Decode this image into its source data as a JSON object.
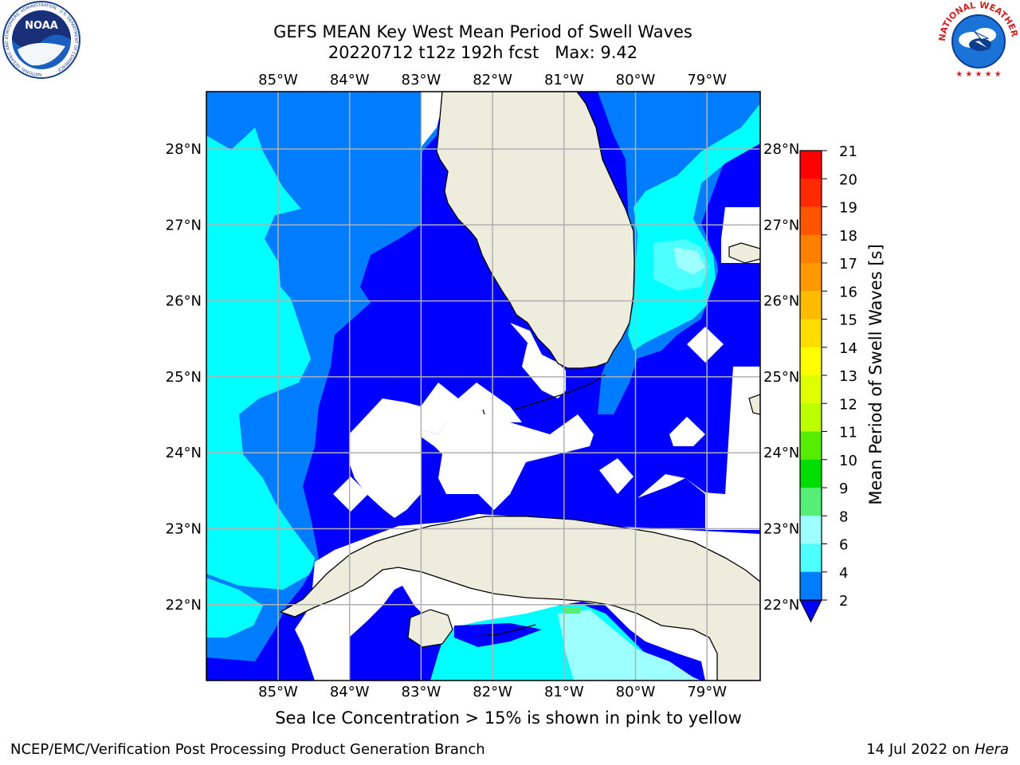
{
  "header": {
    "title_line1": "GEFS MEAN Key West Mean Period of Swell Waves",
    "title_line2": "20220712 t12z 192h fcst   Max: 9.42"
  },
  "logos": {
    "left": {
      "text": "NOAA",
      "ring_text": "NATIONAL OCEANIC AND ATMOSPHERIC ADMINISTRATION · U.S. DEPARTMENT OF COMMERCE ·"
    },
    "right": {
      "ring_text": "NATIONAL WEATHER SERVICE"
    }
  },
  "map": {
    "lon_labels": [
      "85°W",
      "84°W",
      "83°W",
      "82°W",
      "81°W",
      "80°W",
      "79°W"
    ],
    "lat_labels": [
      "28°N",
      "27°N",
      "26°N",
      "25°N",
      "24°N",
      "23°N",
      "22°N"
    ],
    "land_color": "#eeecdc",
    "ocean_colors": {
      "2-4": "#0000ff",
      "4-6": "#007dff",
      "6-8": "#00ffff",
      "8-10": "#4dffff",
      "10-12": "#9dffff"
    },
    "grid": true
  },
  "colorbar": {
    "label": "Mean Period of Swell Waves [s]",
    "ticks": [
      "21",
      "20",
      "19",
      "18",
      "17",
      "16",
      "15",
      "14",
      "13",
      "12",
      "11",
      "10",
      "9",
      "8",
      "6",
      "4",
      "2"
    ],
    "colors_top_to_bottom": [
      "#ff0000",
      "#ff2a00",
      "#ff5500",
      "#ff7f00",
      "#ff9900",
      "#ffbb00",
      "#ffdd00",
      "#ffff00",
      "#ddff00",
      "#bbff00",
      "#55ee00",
      "#00dd00",
      "#00ee44",
      "#55ee77",
      "#9effff",
      "#4dffff",
      "#00ffff",
      "#007dff",
      "#0000ff"
    ]
  },
  "chart_data": {
    "type": "heatmap",
    "variable": "Mean Period of Swell Waves",
    "units": "s",
    "max": 9.42,
    "lon_range": [
      -86,
      -78.3
    ],
    "lat_range": [
      21,
      28.8
    ],
    "levels": [
      2,
      4,
      6,
      8,
      9,
      10,
      11,
      12,
      13,
      14,
      15,
      16,
      17,
      18,
      19,
      20,
      21
    ]
  },
  "notes": {
    "sea_ice": "Sea Ice Concentration > 15% is shown in pink to yellow"
  },
  "footer": {
    "left": "NCEP/EMC/Verification Post Processing Product Generation Branch",
    "right_date": "14 Jul 2022 on ",
    "right_machine": "Hera"
  }
}
